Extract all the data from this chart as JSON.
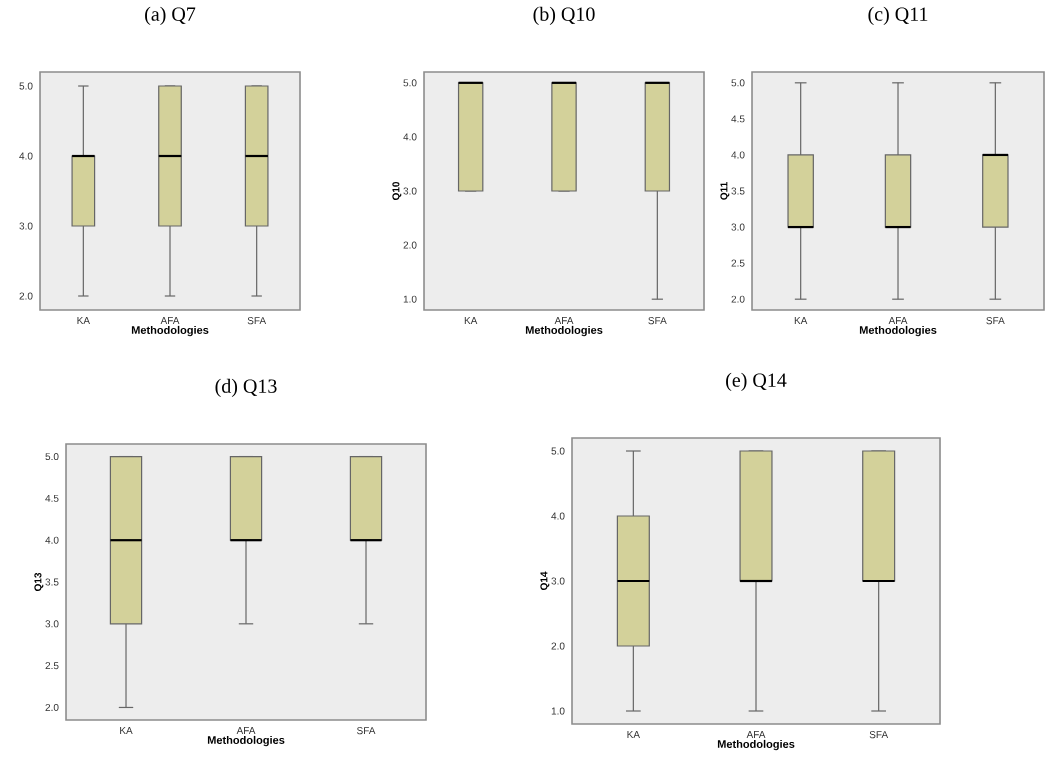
{
  "chart_data": [
    {
      "type": "box",
      "title": "(a) Q7",
      "xlabel": "Methodologies",
      "categories": [
        "KA",
        "AFA",
        "SFA"
      ],
      "color": "#d3d19a",
      "ylim": [
        1.8,
        5.2
      ],
      "yticks": [
        {
          "value": 2,
          "label": "2.0"
        },
        {
          "value": 3,
          "label": "3.0"
        },
        {
          "value": 4,
          "label": "4.0"
        },
        {
          "value": 5,
          "label": "5.0"
        }
      ],
      "boxes": [
        {
          "low": 2,
          "q1": 3,
          "median": 4,
          "q3": 4,
          "high": 5
        },
        {
          "low": 2,
          "q1": 3,
          "median": 4,
          "q3": 5,
          "high": 5
        },
        {
          "low": 2,
          "q1": 3,
          "median": 4,
          "q3": 5,
          "high": 5
        }
      ]
    },
    {
      "type": "box",
      "title": "(b) Q10",
      "xlabel": "Methodologies",
      "ylabel": "Q10",
      "categories": [
        "KA",
        "AFA",
        "SFA"
      ],
      "color": "#d3d19a",
      "ylim": [
        0.8,
        5.2
      ],
      "yticks": [
        {
          "value": 1,
          "label": "1.0"
        },
        {
          "value": 2,
          "label": "2.0"
        },
        {
          "value": 3,
          "label": "3.0"
        },
        {
          "value": 4,
          "label": "4.0"
        },
        {
          "value": 5,
          "label": "5.0"
        }
      ],
      "boxes": [
        {
          "low": 3,
          "q1": 3,
          "median": 5,
          "q3": 5,
          "high": 5
        },
        {
          "low": 3,
          "q1": 3,
          "median": 5,
          "q3": 5,
          "high": 5
        },
        {
          "low": 1,
          "q1": 3,
          "median": 5,
          "q3": 5,
          "high": 5
        }
      ]
    },
    {
      "type": "box",
      "title": "(c) Q11",
      "xlabel": "Methodologies",
      "ylabel": "Q11",
      "categories": [
        "KA",
        "AFA",
        "SFA"
      ],
      "color": "#d3d19a",
      "ylim": [
        1.85,
        5.15
      ],
      "yticks": [
        {
          "value": 2,
          "label": "2.0"
        },
        {
          "value": 2.5,
          "label": "2.5"
        },
        {
          "value": 3,
          "label": "3.0"
        },
        {
          "value": 3.5,
          "label": "3.5"
        },
        {
          "value": 4,
          "label": "4.0"
        },
        {
          "value": 4.5,
          "label": "4.5"
        },
        {
          "value": 5,
          "label": "5.0"
        }
      ],
      "boxes": [
        {
          "low": 2,
          "q1": 3,
          "median": 3,
          "q3": 4,
          "high": 5
        },
        {
          "low": 2,
          "q1": 3,
          "median": 3,
          "q3": 4,
          "high": 5
        },
        {
          "low": 2,
          "q1": 3,
          "median": 4,
          "q3": 4,
          "high": 5
        }
      ]
    },
    {
      "type": "box",
      "title": "(d) Q13",
      "xlabel": "Methodologies",
      "ylabel": "Q13",
      "categories": [
        "KA",
        "AFA",
        "SFA"
      ],
      "color": "#d3d19a",
      "ylim": [
        1.85,
        5.15
      ],
      "yticks": [
        {
          "value": 2,
          "label": "2.0"
        },
        {
          "value": 2.5,
          "label": "2.5"
        },
        {
          "value": 3,
          "label": "3.0"
        },
        {
          "value": 3.5,
          "label": "3.5"
        },
        {
          "value": 4,
          "label": "4.0"
        },
        {
          "value": 4.5,
          "label": "4.5"
        },
        {
          "value": 5,
          "label": "5.0"
        }
      ],
      "boxes": [
        {
          "low": 2,
          "q1": 3,
          "median": 4,
          "q3": 5,
          "high": 5
        },
        {
          "low": 3,
          "q1": 4,
          "median": 4,
          "q3": 5,
          "high": 5
        },
        {
          "low": 3,
          "q1": 4,
          "median": 4,
          "q3": 5,
          "high": 5
        }
      ]
    },
    {
      "type": "box",
      "title": "(e) Q14",
      "xlabel": "Methodologies",
      "ylabel": "Q14",
      "categories": [
        "KA",
        "AFA",
        "SFA"
      ],
      "color": "#d3d19a",
      "ylim": [
        0.8,
        5.2
      ],
      "yticks": [
        {
          "value": 1,
          "label": "1.0"
        },
        {
          "value": 2,
          "label": "2.0"
        },
        {
          "value": 3,
          "label": "3.0"
        },
        {
          "value": 4,
          "label": "4.0"
        },
        {
          "value": 5,
          "label": "5.0"
        }
      ],
      "boxes": [
        {
          "low": 1,
          "q1": 2,
          "median": 3,
          "q3": 4,
          "high": 5
        },
        {
          "low": 1,
          "q1": 3,
          "median": 3,
          "q3": 5,
          "high": 5
        },
        {
          "low": 1,
          "q1": 3,
          "median": 3,
          "q3": 5,
          "high": 5
        }
      ]
    }
  ]
}
